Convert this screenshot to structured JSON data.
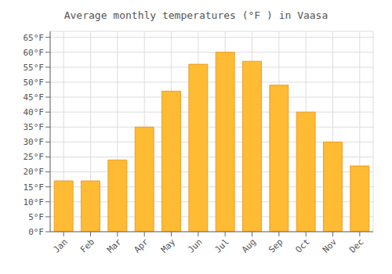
{
  "chart_data": {
    "type": "bar",
    "title": "Average monthly temperatures (°F ) in Vaasa",
    "categories": [
      "Jan",
      "Feb",
      "Mar",
      "Apr",
      "May",
      "Jun",
      "Jul",
      "Aug",
      "Sep",
      "Oct",
      "Nov",
      "Dec"
    ],
    "values": [
      17,
      17,
      24,
      35,
      47,
      56,
      60,
      57,
      49,
      40,
      30,
      22
    ],
    "color": "#FFBB33",
    "ylim": [
      0,
      67
    ],
    "yticks": [
      {
        "value": 0,
        "label": "0°F"
      },
      {
        "value": 5,
        "label": "5°F"
      },
      {
        "value": 10,
        "label": "10°F"
      },
      {
        "value": 15,
        "label": "15°F"
      },
      {
        "value": 20,
        "label": "20°F"
      },
      {
        "value": 25,
        "label": "25°F"
      },
      {
        "value": 30,
        "label": "30°F"
      },
      {
        "value": 35,
        "label": "35°F"
      },
      {
        "value": 40,
        "label": "40°F"
      },
      {
        "value": 45,
        "label": "45°F"
      },
      {
        "value": 50,
        "label": "50°F"
      },
      {
        "value": 55,
        "label": "55°F"
      },
      {
        "value": 60,
        "label": "60°F"
      },
      {
        "value": 65,
        "label": "65°F"
      }
    ],
    "grid": true
  }
}
